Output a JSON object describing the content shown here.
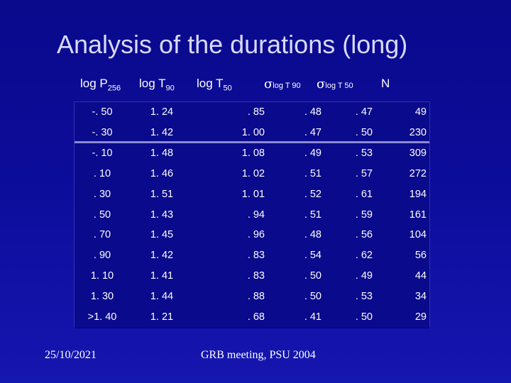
{
  "title": "Analysis of the durations (long)",
  "headers": {
    "p256_main": "log P",
    "p256_sub": "256",
    "t90_main": "log T",
    "t90_sub": "90",
    "t50_main": "log T",
    "t50_sub": "50",
    "sigma_symbol": "σ",
    "sigma_t90_sub": "log T 90",
    "sigma_t50_sub": "log T 50",
    "n": "N"
  },
  "rows": [
    {
      "p": "-. 50",
      "t90": "1. 24",
      "t50": ". 85",
      "s90": ". 48",
      "s50": ". 47",
      "n": "49"
    },
    {
      "p": "-. 30",
      "t90": "1. 42",
      "t50": "1. 00",
      "s90": ". 47",
      "s50": ". 50",
      "n": "230"
    },
    {
      "p": "-. 10",
      "t90": "1. 48",
      "t50": "1. 08",
      "s90": ". 49",
      "s50": ". 53",
      "n": "309"
    },
    {
      "p": ". 10",
      "t90": "1. 46",
      "t50": "1. 02",
      "s90": ". 51",
      "s50": ". 57",
      "n": "272"
    },
    {
      "p": ". 30",
      "t90": "1. 51",
      "t50": "1. 01",
      "s90": ". 52",
      "s50": ". 61",
      "n": "194"
    },
    {
      "p": ". 50",
      "t90": "1. 43",
      "t50": ". 94",
      "s90": ". 51",
      "s50": ". 59",
      "n": "161"
    },
    {
      "p": ". 70",
      "t90": "1. 45",
      "t50": ". 96",
      "s90": ". 48",
      "s50": ". 56",
      "n": "104"
    },
    {
      "p": ". 90",
      "t90": "1. 42",
      "t50": ". 83",
      "s90": ". 54",
      "s50": ". 62",
      "n": "56"
    },
    {
      "p": "1. 10",
      "t90": "1. 41",
      "t50": ". 83",
      "s90": ". 50",
      "s50": ". 49",
      "n": "44"
    },
    {
      "p": "1. 30",
      "t90": "1. 44",
      "t50": ". 88",
      "s90": ". 50",
      "s50": ". 53",
      "n": "34"
    },
    {
      "p": ">1. 40",
      "t90": "1. 21",
      "t50": ". 68",
      "s90": ". 41",
      "s50": ". 50",
      "n": "29"
    }
  ],
  "footer": {
    "date": "25/10/2021",
    "event": "GRB meeting, PSU 2004"
  },
  "colors": {
    "background": "#0c0c9a",
    "title": "#d9d9ff",
    "text": "#ffffff",
    "highlight_line": "#8a8ad0"
  }
}
